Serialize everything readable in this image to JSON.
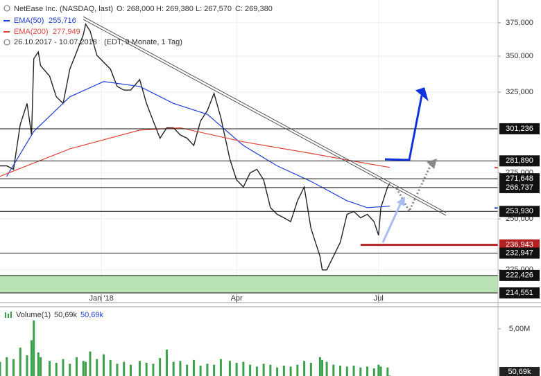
{
  "header": {
    "title": "NetEase Inc. (NASDAQ, last)",
    "ohlc": [
      "O: 268,000",
      "H: 269,380",
      "L: 267,570",
      "C: 269,380"
    ],
    "range": "26.10.2017 - 10.07.2018",
    "range_note": "(EDT, 9 Monate, 1 Tag)"
  },
  "chart_data": [
    {
      "type": "line",
      "log": true,
      "grid": true,
      "xlim": [
        0,
        221
      ],
      "xticks": [
        {
          "value": 45,
          "label": "Jan '18"
        },
        {
          "value": 105,
          "label": "Apr"
        },
        {
          "value": 168,
          "label": "Jul"
        }
      ],
      "ylim": [
        210300,
        393100
      ],
      "yticks": [
        {
          "value": 375000,
          "label": "375,000"
        },
        {
          "value": 350000,
          "label": "350,000"
        },
        {
          "value": 325000,
          "label": "325,000"
        },
        {
          "value": 275000,
          "label": "275,000"
        },
        {
          "value": 250000,
          "label": "250,000"
        },
        {
          "value": 225000,
          "label": "225,000"
        }
      ],
      "series": [
        {
          "name": "NetEase Inc.",
          "color": "#222222",
          "x": [
            0,
            3,
            6,
            9,
            12,
            14,
            15,
            17,
            18,
            22,
            25,
            28,
            31,
            34,
            37,
            38,
            40,
            43,
            46,
            49,
            52,
            55,
            58,
            62,
            65,
            68,
            71,
            74,
            77,
            80,
            83,
            86,
            89,
            92,
            95,
            98,
            102,
            105,
            108,
            111,
            114,
            117,
            120,
            123,
            126,
            129,
            132,
            135,
            138,
            142,
            143,
            145,
            148,
            151,
            154,
            157,
            160,
            163,
            166,
            168,
            169,
            172,
            173
          ],
          "values": [
            279000,
            279000,
            277000,
            303900,
            317400,
            297400,
            348100,
            353100,
            343200,
            335900,
            321800,
            317400,
            340800,
            353100,
            366000,
            374000,
            368600,
            350600,
            345700,
            340800,
            328800,
            326300,
            326300,
            333500,
            317400,
            306100,
            295400,
            301800,
            301800,
            297400,
            295400,
            291000,
            306100,
            312700,
            324100,
            308300,
            282900,
            271000,
            267100,
            275000,
            277000,
            271000,
            255900,
            252400,
            250600,
            248600,
            259600,
            267100,
            245200,
            231500,
            225000,
            225000,
            231500,
            238200,
            252400,
            253900,
            250600,
            252400,
            248600,
            241700,
            255900,
            267100,
            269000
          ]
        },
        {
          "name": "EMA(50)",
          "color": "#1f3fd6",
          "legend_value": {
            "value": 255716,
            "label": "255,716"
          },
          "x": [
            3,
            15,
            31,
            46,
            62,
            77,
            92,
            108,
            123,
            138,
            154,
            163,
            173
          ],
          "values": [
            273000,
            299600,
            321800,
            332100,
            328800,
            317400,
            310400,
            291000,
            279000,
            270200,
            259600,
            255900,
            256700
          ]
        },
        {
          "name": "EMA(200)",
          "color": "#e0453a",
          "legend_value": {
            "value": 277949,
            "label": "277,949"
          },
          "x": [
            0,
            31,
            62,
            80,
            108,
            138,
            160,
            173
          ],
          "values": [
            273000,
            289000,
            300400,
            301800,
            293200,
            286300,
            281000,
            278100
          ]
        }
      ],
      "levels": [
        {
          "value": 301236,
          "label": "301,236",
          "color": "#111111"
        },
        {
          "value": 281890,
          "label": "281,890",
          "color": "#111111"
        },
        {
          "value": 271648,
          "label": "271,648",
          "color": "#111111"
        },
        {
          "value": 266737,
          "label": "266,737",
          "color": "#111111"
        },
        {
          "value": 253930,
          "label": "253,930",
          "color": "#111111"
        },
        {
          "value": 236943,
          "label": "236,943",
          "color": "#b22222",
          "x_from": 160
        },
        {
          "value": 232947,
          "label": "232,947",
          "color": "#111111"
        },
        {
          "value": 222426,
          "label": "222,426",
          "color": "#111111"
        },
        {
          "value": 214551,
          "label": "214,551",
          "color": "#111111"
        }
      ],
      "zone": {
        "range": [
          214551,
          222426
        ],
        "color": "#b9e2b4"
      }
    },
    {
      "type": "bar",
      "legend": "Volume(1)",
      "color": "#3aa04a",
      "last": {
        "value": 50690,
        "label": "50,69k"
      },
      "ylim": [
        0,
        7200000
      ],
      "yticks": [
        {
          "value": 5000000,
          "label": "5,00M"
        }
      ],
      "series": [
        {
          "name": "Volume",
          "color": "#3aa04a",
          "x": [
            0,
            3,
            6,
            9,
            12,
            14,
            15,
            17,
            18,
            22,
            25,
            28,
            31,
            34,
            37,
            38,
            40,
            43,
            46,
            49,
            52,
            55,
            58,
            62,
            65,
            68,
            71,
            74,
            77,
            80,
            83,
            86,
            89,
            92,
            95,
            98,
            102,
            105,
            108,
            111,
            114,
            117,
            120,
            123,
            126,
            129,
            132,
            135,
            138,
            142,
            143,
            145,
            148,
            151,
            154,
            157,
            160,
            163,
            166,
            168,
            169,
            172,
            173
          ],
          "values": [
            1500000,
            2000000,
            1800000,
            3000000,
            2200000,
            3800000,
            5900000,
            2500000,
            2000000,
            1600000,
            1400000,
            1800000,
            1300000,
            2000000,
            1600000,
            1500000,
            2600000,
            1800000,
            2300000,
            1700000,
            1300000,
            1500000,
            1200000,
            1600000,
            1400000,
            1300000,
            1900000,
            2800000,
            1500000,
            1600000,
            1200000,
            1700000,
            1100000,
            1300000,
            1200000,
            1800000,
            1600000,
            1400000,
            1500000,
            1200000,
            1000000,
            1300000,
            1200000,
            900000,
            1100000,
            1000000,
            1200000,
            1600000,
            1400000,
            2000000,
            1700000,
            1500000,
            1200000,
            1100000,
            1000000,
            1100000,
            900000,
            1000000,
            800000,
            1200000,
            1000000,
            900000,
            50690
          ]
        }
      ]
    }
  ]
}
